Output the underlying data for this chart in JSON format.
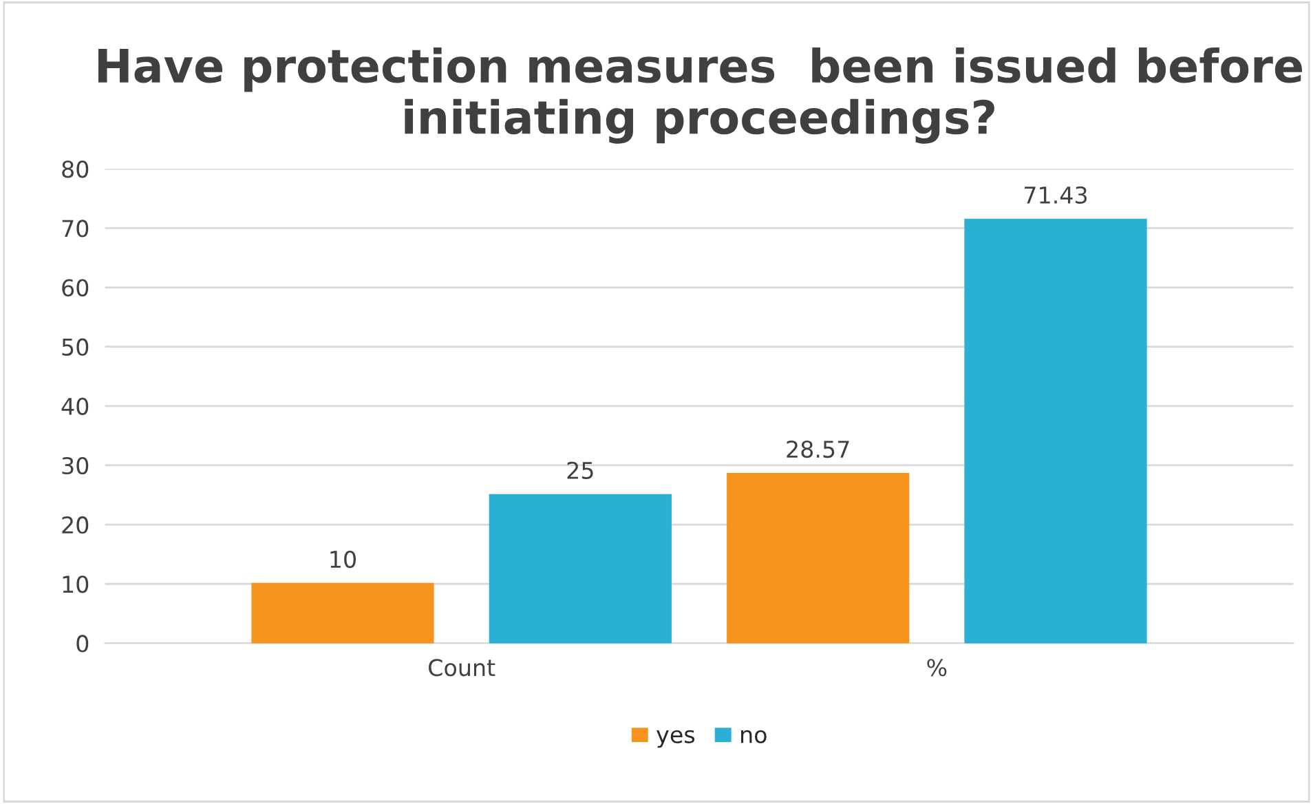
{
  "chart_data": {
    "type": "bar",
    "title": "Have protection measures  been issued before initiating proceedings?",
    "categories": [
      "Count",
      "%"
    ],
    "series": [
      {
        "name": "yes",
        "color": "#f7941d",
        "values": [
          10,
          28.57
        ]
      },
      {
        "name": "no",
        "color": "#2ab0d4",
        "values": [
          25,
          71.43
        ]
      }
    ],
    "ylim": [
      0,
      80
    ],
    "yticks": [
      0,
      10,
      20,
      30,
      40,
      50,
      60,
      70,
      80
    ],
    "grid": "y",
    "legend": "bottom",
    "data_labels": true
  }
}
